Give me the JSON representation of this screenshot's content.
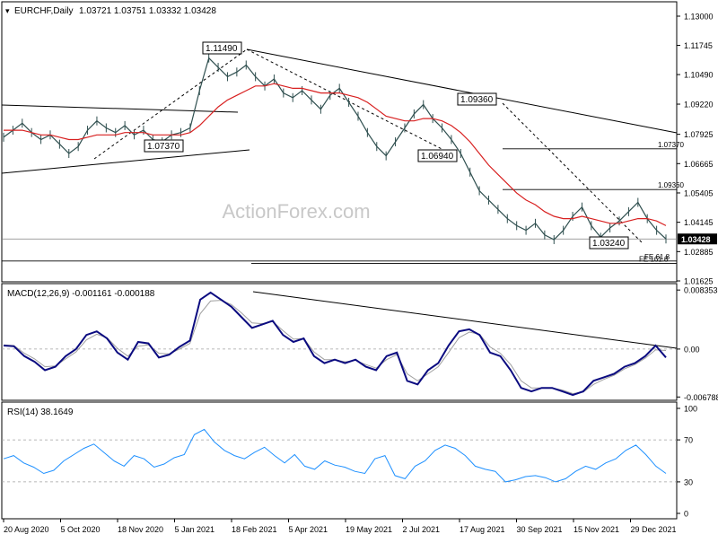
{
  "header": {
    "symbol": "EURCHF,Daily",
    "ohlc": "1.03721 1.03751 1.03332 1.03428"
  },
  "watermark": "ActionForex.com",
  "colors": {
    "price_line": "#2f4f4f",
    "ma": "#d82020",
    "trend": "#000000",
    "macd": "#0b0b80",
    "macd_signal": "#a0a0a0",
    "rsi": "#1e90ff",
    "grid_dash": "#a0a0a0",
    "current_price_box": "#000000"
  },
  "chart_data": [
    {
      "type": "line",
      "name": "price-panel",
      "title": "EURCHF,Daily",
      "ylim": [
        1.01625,
        1.13
      ],
      "y_ticks": [
        "1.13000",
        "1.11745",
        "1.10490",
        "1.09220",
        "1.07925",
        "1.06665",
        "1.05405",
        "1.04145",
        "1.02885",
        "1.01625"
      ],
      "x_ticks": [
        "20 Aug 2020",
        "5 Oct 2020",
        "18 Nov 2020",
        "5 Jan 2021",
        "18 Feb 2021",
        "5 Apr 2021",
        "19 May 2021",
        "2 Jul 2021",
        "17 Aug 2021",
        "30 Sep 2021",
        "15 Nov 2021",
        "29 Dec 2021"
      ],
      "last_price": 1.03428,
      "last_price_label": "1.03428",
      "series": [
        {
          "name": "",
          "x_index": [
            0,
            5,
            10,
            15,
            20,
            25,
            30,
            35,
            40,
            45,
            50,
            55,
            60,
            65,
            70,
            75,
            80,
            85,
            90,
            95,
            100,
            105,
            110,
            115,
            120,
            125,
            130,
            135,
            140,
            145,
            150,
            155,
            160,
            165,
            170,
            175,
            180,
            185,
            190,
            195,
            200,
            205,
            210,
            215,
            220,
            225,
            230,
            235,
            240,
            245,
            250,
            255,
            260,
            265,
            270,
            275,
            280,
            285,
            290,
            295,
            300,
            305,
            310,
            315,
            320,
            325,
            330,
            335,
            340,
            345,
            350,
            355
          ],
          "values": [
            1.078,
            1.081,
            1.084,
            1.08,
            1.077,
            1.079,
            1.075,
            1.071,
            1.074,
            1.081,
            1.085,
            1.082,
            1.08,
            1.083,
            1.079,
            1.081,
            1.077,
            1.076,
            1.079,
            1.08,
            1.082,
            1.098,
            1.112,
            1.108,
            1.104,
            1.106,
            1.109,
            1.104,
            1.1,
            1.103,
            1.097,
            1.095,
            1.098,
            1.094,
            1.09,
            1.096,
            1.099,
            1.093,
            1.087,
            1.08,
            1.074,
            1.07,
            1.076,
            1.082,
            1.088,
            1.092,
            1.086,
            1.082,
            1.077,
            1.071,
            1.063,
            1.055,
            1.051,
            1.047,
            1.043,
            1.04,
            1.038,
            1.041,
            1.036,
            1.034,
            1.038,
            1.044,
            1.048,
            1.04,
            1.035,
            1.039,
            1.042,
            1.046,
            1.05,
            1.043,
            1.038,
            1.03428
          ]
        },
        {
          "name": "",
          "values": [
            1.081,
            1.081,
            1.081,
            1.08,
            1.079,
            1.079,
            1.078,
            1.077,
            1.077,
            1.078,
            1.079,
            1.079,
            1.079,
            1.08,
            1.08,
            1.08,
            1.079,
            1.079,
            1.079,
            1.079,
            1.08,
            1.083,
            1.087,
            1.091,
            1.094,
            1.096,
            1.098,
            1.1,
            1.1,
            1.101,
            1.1,
            1.099,
            1.099,
            1.098,
            1.097,
            1.097,
            1.097,
            1.096,
            1.095,
            1.093,
            1.09,
            1.087,
            1.086,
            1.085,
            1.085,
            1.086,
            1.086,
            1.085,
            1.083,
            1.08,
            1.076,
            1.071,
            1.066,
            1.062,
            1.058,
            1.054,
            1.051,
            1.049,
            1.046,
            1.044,
            1.043,
            1.043,
            1.044,
            1.043,
            1.042,
            1.041,
            1.041,
            1.042,
            1.043,
            1.043,
            1.042,
            1.04
          ]
        }
      ],
      "annotations": [
        "1.11490",
        "1.07370",
        "1.09360",
        "1.06940",
        "1.03240",
        "61.8",
        "38.2",
        "FE 61.8",
        "FE 161.8"
      ]
    },
    {
      "type": "line",
      "name": "macd-panel",
      "title": "MACD(12,26,9) -0.001161 -0.000188",
      "ylim": [
        -0.007,
        0.0085
      ],
      "y_ticks": [
        "0.008353",
        "0.00",
        "-0.006788"
      ],
      "series": [
        {
          "name": "",
          "values": [
            0.0005,
            0.0004,
            -0.001,
            -0.0018,
            -0.003,
            -0.0025,
            -0.001,
            0.0,
            0.002,
            0.0025,
            0.0015,
            -0.0005,
            -0.0015,
            0.001,
            0.0008,
            -0.0012,
            -0.0008,
            0.0003,
            0.0012,
            0.007,
            0.008,
            0.007,
            0.006,
            0.0045,
            0.003,
            0.0035,
            0.004,
            0.002,
            0.001,
            0.0015,
            -0.001,
            -0.002,
            -0.0015,
            -0.002,
            -0.0015,
            -0.0025,
            -0.003,
            -0.001,
            -0.0005,
            -0.0045,
            -0.005,
            -0.003,
            -0.002,
            0.0005,
            0.0025,
            0.0028,
            0.002,
            -0.0005,
            -0.001,
            -0.003,
            -0.0055,
            -0.006,
            -0.0055,
            -0.0055,
            -0.006,
            -0.0065,
            -0.006,
            -0.0045,
            -0.004,
            -0.0035,
            -0.0025,
            -0.002,
            -0.001,
            0.0005,
            -0.0012
          ]
        },
        {
          "name": "",
          "values": [
            0.0006,
            0.0005,
            -0.0006,
            -0.0014,
            -0.0025,
            -0.0024,
            -0.0014,
            -0.0004,
            0.0013,
            0.0021,
            0.0016,
            0.0001,
            -0.001,
            0.0004,
            0.0006,
            -0.0006,
            -0.0007,
            0.0,
            0.0008,
            0.005,
            0.0068,
            0.0069,
            0.0063,
            0.0051,
            0.0037,
            0.0036,
            0.0039,
            0.0026,
            0.0014,
            0.0015,
            -0.0004,
            -0.0015,
            -0.0015,
            -0.0018,
            -0.0016,
            -0.0022,
            -0.0027,
            -0.0015,
            -0.0008,
            -0.0035,
            -0.0045,
            -0.0035,
            -0.0025,
            -0.0005,
            0.0016,
            0.0024,
            0.0021,
            0.0003,
            -0.0006,
            -0.0022,
            -0.0045,
            -0.0055,
            -0.0055,
            -0.0055,
            -0.0058,
            -0.0063,
            -0.0061,
            -0.005,
            -0.0043,
            -0.0037,
            -0.0028,
            -0.0022,
            -0.0013,
            -0.0001,
            -0.0002
          ]
        }
      ]
    },
    {
      "type": "line",
      "name": "rsi-panel",
      "title": "RSI(14) 38.1649",
      "ylim": [
        0,
        100
      ],
      "y_ticks": [
        "100",
        "70",
        "30",
        "0"
      ],
      "reference_levels": [
        70,
        30
      ],
      "series": [
        {
          "name": "",
          "values": [
            52,
            55,
            48,
            44,
            38,
            41,
            50,
            56,
            62,
            66,
            58,
            50,
            45,
            55,
            52,
            44,
            47,
            53,
            56,
            75,
            80,
            68,
            60,
            55,
            52,
            58,
            63,
            55,
            48,
            56,
            45,
            42,
            50,
            46,
            44,
            40,
            38,
            52,
            55,
            36,
            33,
            45,
            50,
            60,
            65,
            62,
            55,
            45,
            42,
            40,
            30,
            32,
            35,
            36,
            34,
            30,
            33,
            40,
            45,
            42,
            48,
            52,
            60,
            65,
            56,
            45,
            38
          ]
        }
      ]
    }
  ]
}
